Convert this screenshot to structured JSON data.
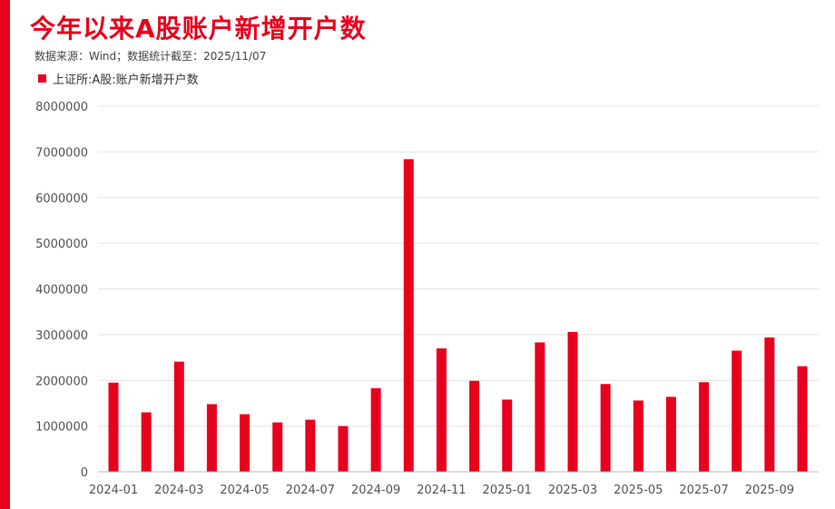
{
  "colors": {
    "accent": "#e8001c",
    "grid": "#e4e4e4",
    "text": "#555555"
  },
  "header": {
    "title": "今年以来A股账户新增开户数",
    "source": "数据来源：Wind；数据统计截至：2025/11/07"
  },
  "chart_data": {
    "type": "bar",
    "title": "今年以来A股账户新增开户数",
    "xlabel": "",
    "ylabel": "",
    "ylim": [
      0,
      8000000
    ],
    "yticks": [
      "0",
      "1000000",
      "2000000",
      "3000000",
      "4000000",
      "5000000",
      "6000000",
      "7000000",
      "8000000"
    ],
    "grid": true,
    "legend_position": "top-left",
    "categories": [
      "2024-01",
      "2024-02",
      "2024-03",
      "2024-04",
      "2024-05",
      "2024-06",
      "2024-07",
      "2024-08",
      "2024-09",
      "2024-10",
      "2024-11",
      "2024-12",
      "2025-01",
      "2025-02",
      "2025-03",
      "2025-04",
      "2025-05",
      "2025-06",
      "2025-07",
      "2025-08",
      "2025-09",
      "2025-10"
    ],
    "xtick_labels": [
      "2024-01",
      "",
      "2024-03",
      "",
      "2024-05",
      "",
      "2024-07",
      "",
      "2024-09",
      "",
      "2024-11",
      "",
      "2025-01",
      "",
      "2025-03",
      "",
      "2025-05",
      "",
      "2025-07",
      "",
      "2025-09",
      ""
    ],
    "series": [
      {
        "name": "上证所:A股:账户新增开户数",
        "color": "#e8001c",
        "values": [
          1950000,
          1300000,
          2410000,
          1480000,
          1260000,
          1080000,
          1140000,
          1000000,
          1830000,
          6840000,
          2700000,
          1990000,
          1580000,
          2830000,
          3060000,
          1920000,
          1560000,
          1640000,
          1960000,
          2650000,
          2940000,
          2310000
        ]
      }
    ]
  }
}
